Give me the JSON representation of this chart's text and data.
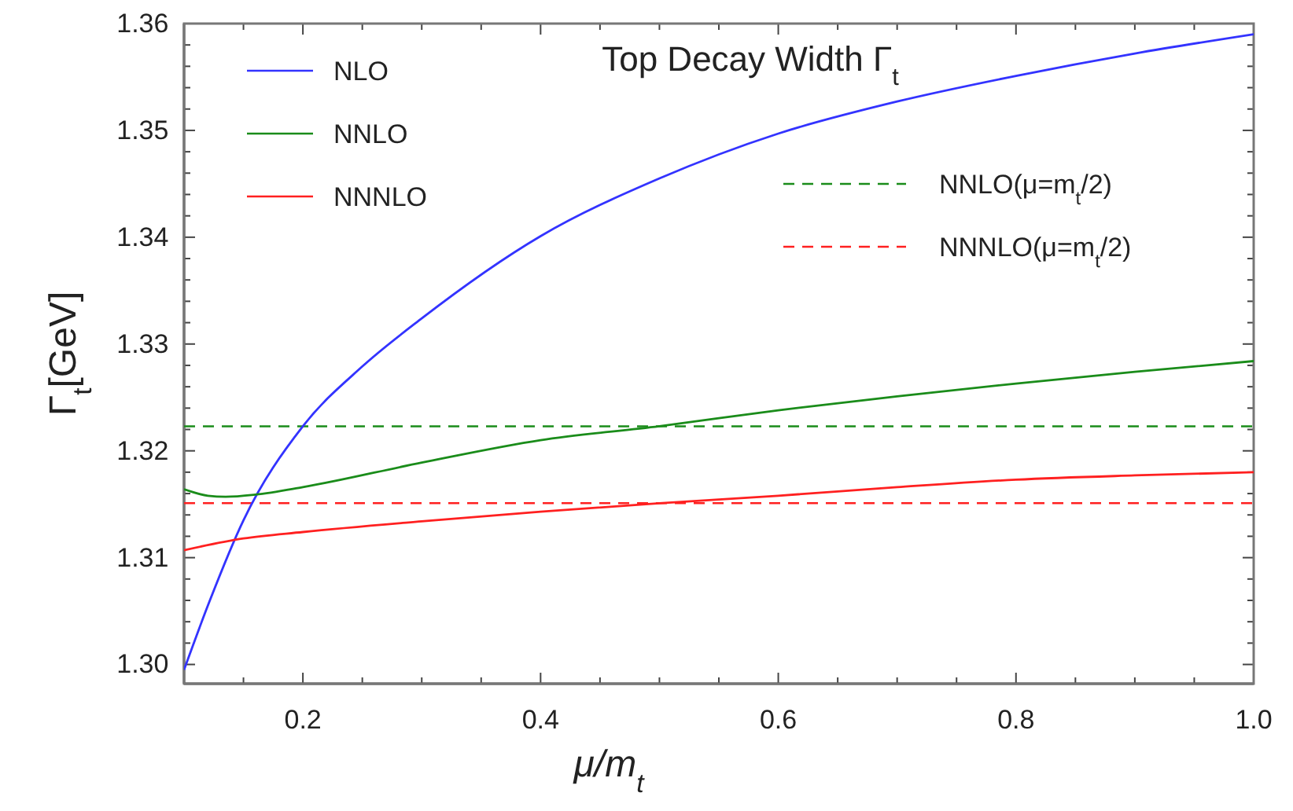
{
  "chart_data": {
    "type": "line",
    "title": "Top Decay Width Γ$_{t}$",
    "xlabel": "μ/m$_{t}$",
    "ylabel": "Γ$_{t}$[GeV]",
    "xlim": [
      0.1,
      1.0
    ],
    "ylim": [
      1.2982,
      1.36
    ],
    "xticks": [
      {
        "value": 0.15,
        "label": null
      },
      {
        "value": 0.2,
        "label": "0.2"
      },
      {
        "value": 0.25,
        "label": null
      },
      {
        "value": 0.3,
        "label": null
      },
      {
        "value": 0.35,
        "label": null
      },
      {
        "value": 0.4,
        "label": "0.4"
      },
      {
        "value": 0.45,
        "label": null
      },
      {
        "value": 0.5,
        "label": null
      },
      {
        "value": 0.55,
        "label": null
      },
      {
        "value": 0.6,
        "label": "0.6"
      },
      {
        "value": 0.65,
        "label": null
      },
      {
        "value": 0.7,
        "label": null
      },
      {
        "value": 0.75,
        "label": null
      },
      {
        "value": 0.8,
        "label": "0.8"
      },
      {
        "value": 0.85,
        "label": null
      },
      {
        "value": 0.9,
        "label": null
      },
      {
        "value": 0.95,
        "label": null
      },
      {
        "value": 1.0,
        "label": "1.0"
      }
    ],
    "yticks": [
      {
        "value": 1.3,
        "label": "1.30"
      },
      {
        "value": 1.302,
        "label": null
      },
      {
        "value": 1.304,
        "label": null
      },
      {
        "value": 1.306,
        "label": null
      },
      {
        "value": 1.308,
        "label": null
      },
      {
        "value": 1.31,
        "label": "1.31"
      },
      {
        "value": 1.312,
        "label": null
      },
      {
        "value": 1.314,
        "label": null
      },
      {
        "value": 1.316,
        "label": null
      },
      {
        "value": 1.318,
        "label": null
      },
      {
        "value": 1.32,
        "label": "1.32"
      },
      {
        "value": 1.322,
        "label": null
      },
      {
        "value": 1.324,
        "label": null
      },
      {
        "value": 1.326,
        "label": null
      },
      {
        "value": 1.328,
        "label": null
      },
      {
        "value": 1.33,
        "label": "1.33"
      },
      {
        "value": 1.332,
        "label": null
      },
      {
        "value": 1.334,
        "label": null
      },
      {
        "value": 1.336,
        "label": null
      },
      {
        "value": 1.338,
        "label": null
      },
      {
        "value": 1.34,
        "label": "1.34"
      },
      {
        "value": 1.342,
        "label": null
      },
      {
        "value": 1.344,
        "label": null
      },
      {
        "value": 1.346,
        "label": null
      },
      {
        "value": 1.348,
        "label": null
      },
      {
        "value": 1.35,
        "label": "1.35"
      },
      {
        "value": 1.352,
        "label": null
      },
      {
        "value": 1.354,
        "label": null
      },
      {
        "value": 1.356,
        "label": null
      },
      {
        "value": 1.358,
        "label": null
      },
      {
        "value": 1.36,
        "label": "1.36"
      }
    ],
    "grid": false,
    "legend": "top left",
    "marker": "none",
    "line_style": "solid",
    "series": [
      {
        "name": "NLO",
        "color": "#3333ff",
        "x": [
          0.1,
          0.12,
          0.15,
          0.2,
          0.25,
          0.3,
          0.4,
          0.5,
          0.6,
          0.7,
          0.8,
          0.9,
          1.0
        ],
        "values": [
          1.2995,
          1.3055,
          1.3135,
          1.3223,
          1.3279,
          1.3324,
          1.3401,
          1.3455,
          1.3497,
          1.3527,
          1.3551,
          1.3572,
          1.359
        ]
      },
      {
        "name": "NNLO",
        "color": "#1a8c1a",
        "x": [
          0.1,
          0.12,
          0.135,
          0.16,
          0.2,
          0.3,
          0.4,
          0.5,
          0.6,
          0.7,
          0.8,
          0.9,
          1.0
        ],
        "values": [
          1.3164,
          1.3158,
          1.3157,
          1.3159,
          1.3166,
          1.3189,
          1.321,
          1.3223,
          1.3238,
          1.3251,
          1.3263,
          1.3274,
          1.3284
        ]
      },
      {
        "name": "NNNLO",
        "color": "#ff2020",
        "x": [
          0.1,
          0.15,
          0.2,
          0.3,
          0.4,
          0.5,
          0.6,
          0.7,
          0.8,
          0.9,
          1.0
        ],
        "values": [
          1.3107,
          1.3118,
          1.3124,
          1.3134,
          1.3143,
          1.3151,
          1.3158,
          1.3166,
          1.3173,
          1.3177,
          1.318
        ]
      }
    ],
    "ref_lines": [
      {
        "axis": "y",
        "value": 1.3223,
        "label": "NNLO(μ=m$_{t}$/2)",
        "color": "#1a8c1a",
        "line_style": "dashed"
      },
      {
        "axis": "y",
        "value": 1.3151,
        "label": "NNNLO(μ=m$_{t}$/2)",
        "color": "#ff2020",
        "line_style": "dashed"
      }
    ]
  }
}
